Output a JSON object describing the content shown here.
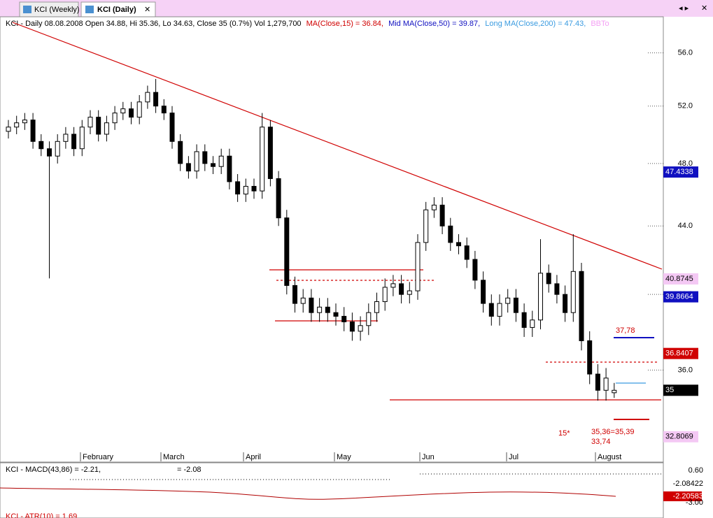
{
  "tabs": [
    "KCI (Weekly)",
    "KCI (Daily)"
  ],
  "header": {
    "quote": "KCI - Daily 08.08.2008 Open 34.88, Hi 35.36, Lo 34.63, Close 35 (0.7%) Vol 1,279,700",
    "ma15": "MA(Close,15) = 36.84,",
    "ma50": "Mid MA(Close,50) = 39.87,",
    "ma200": "Long MA(Close,200) = 47.43,",
    "bb": "BBTo"
  },
  "chart_data": {
    "type": "candlestick",
    "months": [
      "February",
      "March",
      "April",
      "May",
      "Jun",
      "Jul",
      "August"
    ],
    "open": [
      50.2,
      50.5,
      50.8,
      51.0,
      49.5,
      49.0,
      48.5,
      49.5,
      50.0,
      49.0,
      50.5,
      51.2,
      50.0,
      50.8,
      51.5,
      51.8,
      51.2,
      52.3,
      53.0,
      52.0,
      51.5,
      49.5,
      48.0,
      47.5,
      48.8,
      48.0,
      47.8,
      48.5,
      46.8,
      46.0,
      46.5,
      46.2,
      50.5,
      47.0,
      44.5,
      40.5,
      39.5,
      39.8,
      39.0,
      39.3,
      39.0,
      38.8,
      38.5,
      38.0,
      38.3,
      39.0,
      39.6,
      40.4,
      40.6,
      40.0,
      40.2,
      43.0,
      45.0,
      45.3,
      44.0,
      43.0,
      42.8,
      42.0,
      40.8,
      39.5,
      38.8,
      39.5,
      39.8,
      39.0,
      38.2,
      38.6,
      41.2,
      40.6,
      40.0,
      39.0,
      41.3,
      37.5,
      35.8,
      35.0,
      34.88
    ],
    "high": [
      51.0,
      51.3,
      51.5,
      51.5,
      50.0,
      49.5,
      50.0,
      50.5,
      50.5,
      51.0,
      51.7,
      51.7,
      51.3,
      52.0,
      52.3,
      52.3,
      52.8,
      53.5,
      54.0,
      52.5,
      52.0,
      50.0,
      48.5,
      49.3,
      49.3,
      48.5,
      49.0,
      49.0,
      47.3,
      47.0,
      47.0,
      51.5,
      51.0,
      47.5,
      45.0,
      41.0,
      40.3,
      40.3,
      39.8,
      39.8,
      39.5,
      39.3,
      39.0,
      38.8,
      39.5,
      40.1,
      40.9,
      41.1,
      41.1,
      40.7,
      43.5,
      45.5,
      45.8,
      45.8,
      44.5,
      43.5,
      43.3,
      42.5,
      41.3,
      40.0,
      40.0,
      40.3,
      40.3,
      39.5,
      39.1,
      43.2,
      41.7,
      41.1,
      40.5,
      43.5,
      41.8,
      38.0,
      36.3,
      36.1,
      35.36
    ],
    "low": [
      49.7,
      50.0,
      50.3,
      49.0,
      48.5,
      40.9,
      48.0,
      49.0,
      48.5,
      48.5,
      50.0,
      49.5,
      49.5,
      50.3,
      51.0,
      50.7,
      50.7,
      51.8,
      51.5,
      51.0,
      49.0,
      47.5,
      47.0,
      47.0,
      47.5,
      47.3,
      47.3,
      46.3,
      45.5,
      45.5,
      45.7,
      45.7,
      46.5,
      44.0,
      40.0,
      39.0,
      39.0,
      38.5,
      38.5,
      38.5,
      38.3,
      38.0,
      37.5,
      37.5,
      37.8,
      38.5,
      39.1,
      39.9,
      39.5,
      39.5,
      39.7,
      42.5,
      44.5,
      43.5,
      42.5,
      42.3,
      41.5,
      40.3,
      39.0,
      38.3,
      38.3,
      39.0,
      38.5,
      37.7,
      37.7,
      38.1,
      40.1,
      39.5,
      38.5,
      38.5,
      37.0,
      35.3,
      34.5,
      34.5,
      34.63
    ],
    "close": [
      50.5,
      50.8,
      51.0,
      49.5,
      49.0,
      48.5,
      49.5,
      50.0,
      49.0,
      50.5,
      51.2,
      50.0,
      50.8,
      51.5,
      51.8,
      51.2,
      52.3,
      53.0,
      52.0,
      51.5,
      49.5,
      48.0,
      47.5,
      48.8,
      48.0,
      47.8,
      48.5,
      46.8,
      46.0,
      46.5,
      46.2,
      50.5,
      47.0,
      44.5,
      40.5,
      39.5,
      39.8,
      39.0,
      39.3,
      39.0,
      38.8,
      38.5,
      38.0,
      38.3,
      39.0,
      39.6,
      40.4,
      40.6,
      40.0,
      40.2,
      43.0,
      45.0,
      45.3,
      44.0,
      43.0,
      42.8,
      42.0,
      40.8,
      39.5,
      38.8,
      39.5,
      39.8,
      39.0,
      38.2,
      38.6,
      41.2,
      40.6,
      40.0,
      39.0,
      41.3,
      37.5,
      35.8,
      35.0,
      35.6,
      35
    ],
    "ylim": [
      31.7,
      59.0
    ],
    "log_scale": true,
    "yticks": [
      {
        "value": 56,
        "label": "56.0"
      },
      {
        "value": 52,
        "label": "52.0"
      },
      {
        "value": 48,
        "label": "48.0"
      },
      {
        "value": 44,
        "label": "44.0"
      },
      {
        "value": 40,
        "label": "40.0"
      },
      {
        "value": 36,
        "label": "36.0"
      }
    ],
    "price_labels": [
      {
        "value": 47.4338,
        "color": "#1010c0"
      },
      {
        "value": 40.8745,
        "color": "#f4c8f4"
      },
      {
        "value": 39.8664,
        "color": "#1010c0"
      },
      {
        "value": 36.8407,
        "color": "#d00000"
      },
      {
        "value": 35,
        "color": "#000000"
      },
      {
        "value": 32.8069,
        "color": "#f4c8f4"
      }
    ],
    "annotations": [
      "37,78",
      "15*",
      "35,36=35,39",
      "33,74"
    ]
  },
  "macd": {
    "label": "KCI - MACD(43,86) = -2.21,",
    "signal": "= -2.08",
    "ticks": [
      "0.60",
      "-2.08422",
      "-2.20583",
      "-3.00"
    ]
  },
  "atr": "KCI - ATR(10) = 1.69"
}
